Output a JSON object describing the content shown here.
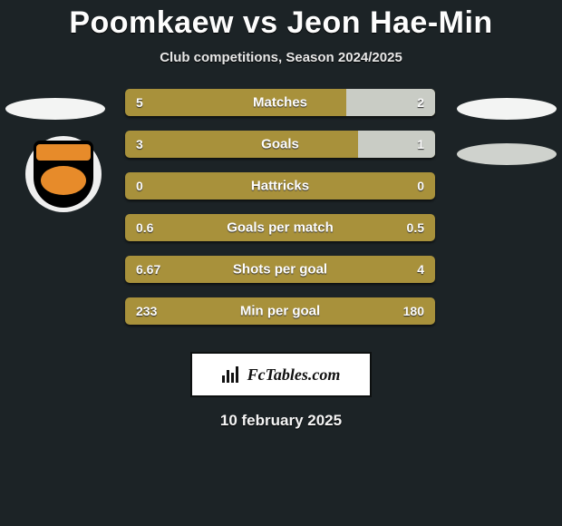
{
  "title": "Poomkaew vs Jeon Hae-Min",
  "subtitle": "Club competitions, Season 2024/2025",
  "date": "10 february 2025",
  "colors": {
    "page_bg": "#1c2326",
    "bar_left": "#a8913b",
    "bar_right": "#c9ccc5",
    "oval": "#f3f4f3",
    "oval2": "#cfd2cd",
    "crest_bg": "#efefef",
    "crest_shield": "#000000",
    "crest_accent": "#e78b2a",
    "badge_bg": "#ffffff"
  },
  "badge": {
    "text": "FcTables.com",
    "icon": "bar-chart-icon"
  },
  "rows": [
    {
      "label": "Matches",
      "left": "5",
      "right": "2",
      "right_pct": 28.6
    },
    {
      "label": "Goals",
      "left": "3",
      "right": "1",
      "right_pct": 25.0
    },
    {
      "label": "Hattricks",
      "left": "0",
      "right": "0",
      "right_pct": 0.0
    },
    {
      "label": "Goals per match",
      "left": "0.6",
      "right": "0.5",
      "right_pct": 0.0
    },
    {
      "label": "Shots per goal",
      "left": "6.67",
      "right": "4",
      "right_pct": 0.0
    },
    {
      "label": "Min per goal",
      "left": "233",
      "right": "180",
      "right_pct": 0.0
    }
  ]
}
